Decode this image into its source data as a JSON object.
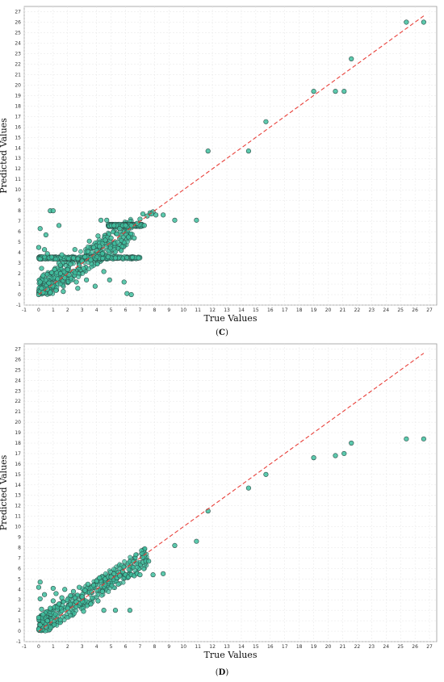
{
  "chart_data": [
    {
      "type": "scatter",
      "caption_open": "(",
      "caption_letter": "C",
      "caption_close": ")",
      "xlabel": "True Values",
      "ylabel": "Predicted Values",
      "xlim": [
        -1,
        27.5
      ],
      "ylim": [
        -1,
        27.5
      ],
      "x_ticks": [
        -1,
        0,
        1,
        2,
        3,
        4,
        5,
        6,
        7,
        8,
        9,
        10,
        11,
        12,
        13,
        14,
        15,
        16,
        17,
        18,
        19,
        20,
        21,
        22,
        23,
        24,
        25,
        26,
        27
      ],
      "y_ticks": [
        -1,
        0,
        1,
        2,
        3,
        4,
        5,
        6,
        7,
        8,
        9,
        10,
        11,
        12,
        13,
        14,
        15,
        16,
        17,
        18,
        19,
        20,
        21,
        22,
        23,
        24,
        25,
        26,
        27
      ],
      "grid": true,
      "reference_line": {
        "style": "dashed",
        "color": "#e8403a",
        "from": [
          0,
          0
        ],
        "to": [
          26.6,
          26.6
        ]
      },
      "point_color": "#3fbf9f",
      "points": [
        [
          0,
          0
        ],
        [
          0.1,
          0.3
        ],
        [
          0.2,
          0.6
        ],
        [
          0.1,
          1.2
        ],
        [
          0.3,
          1.8
        ],
        [
          0.2,
          2.5
        ],
        [
          0.1,
          3.4
        ],
        [
          0,
          4.5
        ],
        [
          0.1,
          6.3
        ],
        [
          0.8,
          8
        ],
        [
          1,
          8
        ],
        [
          0.5,
          5.7
        ],
        [
          0.4,
          4.3
        ],
        [
          0.6,
          3.9
        ],
        [
          0.9,
          2.1
        ],
        [
          0.7,
          1.1
        ],
        [
          0.3,
          0.2
        ],
        [
          0.6,
          0.5
        ],
        [
          0.8,
          0.2
        ],
        [
          1.2,
          0.4
        ],
        [
          1.3,
          1.5
        ],
        [
          1.1,
          2.4
        ],
        [
          1.4,
          3
        ],
        [
          1.6,
          3.8
        ],
        [
          1.5,
          2.8
        ],
        [
          1.8,
          1.6
        ],
        [
          2,
          2.4
        ],
        [
          1.7,
          0.3
        ],
        [
          1.4,
          6.6
        ],
        [
          2.2,
          2.9
        ],
        [
          2.4,
          3.5
        ],
        [
          2.1,
          1.9
        ],
        [
          2.6,
          1.2
        ],
        [
          2.8,
          2.8
        ],
        [
          3,
          3.2
        ],
        [
          2.7,
          0.6
        ],
        [
          2.5,
          4.3
        ],
        [
          3.2,
          3.6
        ],
        [
          3.4,
          4.1
        ],
        [
          3.1,
          2.5
        ],
        [
          3.6,
          3.3
        ],
        [
          3.8,
          4.5
        ],
        [
          3.5,
          5.1
        ],
        [
          3.3,
          1.4
        ],
        [
          3.9,
          0.8
        ],
        [
          4,
          4.2
        ],
        [
          4.2,
          4.6
        ],
        [
          4.4,
          3.9
        ],
        [
          4.1,
          5.6
        ],
        [
          4.6,
          5.2
        ],
        [
          4.8,
          3.6
        ],
        [
          4.3,
          7.1
        ],
        [
          4.7,
          7.1
        ],
        [
          4.5,
          2.2
        ],
        [
          4.9,
          1.4
        ],
        [
          5,
          5.4
        ],
        [
          5.2,
          6.6
        ],
        [
          5.4,
          5.8
        ],
        [
          5.6,
          6.3
        ],
        [
          5.8,
          6.6
        ],
        [
          5.3,
          3.5
        ],
        [
          5.7,
          4.2
        ],
        [
          6,
          6.6
        ],
        [
          6.2,
          5.5
        ],
        [
          5.9,
          1.2
        ],
        [
          6.1,
          0.1
        ],
        [
          6.4,
          0
        ],
        [
          6.4,
          6.6
        ],
        [
          6.6,
          5.4
        ],
        [
          6.8,
          6.8
        ],
        [
          7,
          7.2
        ],
        [
          7.2,
          7.7
        ],
        [
          6.9,
          3.5
        ],
        [
          7.3,
          6.6
        ],
        [
          7.5,
          7.5
        ],
        [
          7.7,
          7.8
        ],
        [
          7.9,
          7.9
        ],
        [
          8.1,
          7.6
        ],
        [
          7.8,
          7.7
        ],
        [
          8.6,
          7.6
        ],
        [
          9.4,
          7.1
        ],
        [
          10.9,
          7.1
        ],
        [
          11.7,
          13.7
        ],
        [
          14.5,
          13.7
        ],
        [
          15.7,
          16.5
        ],
        [
          19,
          19.4
        ],
        [
          20.5,
          19.4
        ],
        [
          21.1,
          19.4
        ],
        [
          21.6,
          22.5
        ],
        [
          25.4,
          26
        ],
        [
          26.6,
          26
        ]
      ],
      "dense_clusters": [
        {
          "x_range": [
            0,
            6.5
          ],
          "band": 1.2
        },
        {
          "x_range": [
            0,
            7
          ],
          "flat_y": 3.5
        },
        {
          "x_range": [
            4.8,
            7.2
          ],
          "flat_y": 6.6
        }
      ]
    },
    {
      "type": "scatter",
      "caption_open": "(",
      "caption_letter": "D",
      "caption_close": ")",
      "xlabel": "True Values",
      "ylabel": "Predicted Values",
      "xlim": [
        -1,
        27.5
      ],
      "ylim": [
        -1,
        27.5
      ],
      "x_ticks": [
        -1,
        0,
        1,
        2,
        3,
        4,
        5,
        6,
        7,
        8,
        9,
        10,
        11,
        12,
        13,
        14,
        15,
        16,
        17,
        18,
        19,
        20,
        21,
        22,
        23,
        24,
        25,
        26,
        27
      ],
      "y_ticks": [
        -1,
        0,
        1,
        2,
        3,
        4,
        5,
        6,
        7,
        8,
        9,
        10,
        11,
        12,
        13,
        14,
        15,
        16,
        17,
        18,
        19,
        20,
        21,
        22,
        23,
        24,
        25,
        26,
        27
      ],
      "grid": true,
      "reference_line": {
        "style": "dashed",
        "color": "#e8403a",
        "from": [
          0,
          0
        ],
        "to": [
          26.6,
          26.6
        ]
      },
      "point_color": "#3fbf9f",
      "points": [
        [
          0,
          0.2
        ],
        [
          0.1,
          0.6
        ],
        [
          0,
          1.3
        ],
        [
          0.2,
          2.1
        ],
        [
          0.1,
          3.1
        ],
        [
          0,
          4.2
        ],
        [
          0.1,
          4.7
        ],
        [
          0.3,
          1.6
        ],
        [
          0.4,
          3.5
        ],
        [
          0.6,
          1
        ],
        [
          0.8,
          2.2
        ],
        [
          1,
          2.9
        ],
        [
          1.2,
          3.6
        ],
        [
          1,
          4.1
        ],
        [
          1.4,
          2.6
        ],
        [
          1.6,
          3.2
        ],
        [
          1.8,
          4
        ],
        [
          2,
          2.2
        ],
        [
          2.2,
          3.4
        ],
        [
          2.4,
          3.8
        ],
        [
          2.6,
          2.8
        ],
        [
          2.8,
          4.2
        ],
        [
          3,
          3.3
        ],
        [
          3.2,
          3.9
        ],
        [
          3.4,
          4.5
        ],
        [
          3.1,
          1.9
        ],
        [
          3.6,
          2.6
        ],
        [
          3.8,
          4.4
        ],
        [
          4,
          4.8
        ],
        [
          4.2,
          5.1
        ],
        [
          4.4,
          3.8
        ],
        [
          4.6,
          5
        ],
        [
          4.8,
          5.2
        ],
        [
          4.1,
          2.9
        ],
        [
          4.5,
          2
        ],
        [
          5,
          5.2
        ],
        [
          5.2,
          5.5
        ],
        [
          5.4,
          5.1
        ],
        [
          5.6,
          5.3
        ],
        [
          5.8,
          5.7
        ],
        [
          6,
          5.4
        ],
        [
          6.2,
          5.2
        ],
        [
          5.5,
          4.5
        ],
        [
          5.3,
          2
        ],
        [
          6.3,
          2
        ],
        [
          6.4,
          5.4
        ],
        [
          6.6,
          5.3
        ],
        [
          6.8,
          5.5
        ],
        [
          7,
          5.4
        ],
        [
          7.2,
          6.6
        ],
        [
          7.4,
          6.7
        ],
        [
          7.6,
          6.7
        ],
        [
          7.9,
          5.4
        ],
        [
          8.6,
          5.5
        ],
        [
          9.4,
          8.2
        ],
        [
          10.9,
          8.6
        ],
        [
          11.7,
          11.5
        ],
        [
          14.5,
          13.7
        ],
        [
          15.7,
          15
        ],
        [
          19,
          16.6
        ],
        [
          20.5,
          16.8
        ],
        [
          21.1,
          17
        ],
        [
          21.6,
          18
        ],
        [
          25.4,
          18.4
        ],
        [
          26.6,
          18.4
        ]
      ],
      "dense_clusters": [
        {
          "x_range": [
            0,
            7.5
          ],
          "band": 1.0
        }
      ]
    }
  ]
}
